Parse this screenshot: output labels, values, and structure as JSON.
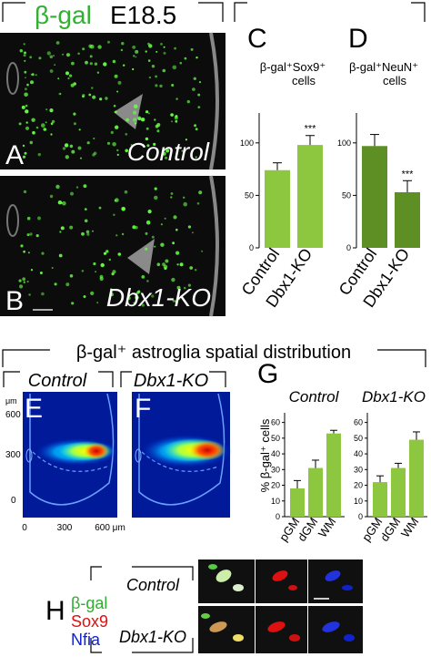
{
  "header_top": {
    "marker": "β-gal",
    "stage": "E18.5"
  },
  "panels": {
    "A": {
      "letter": "A",
      "label": "Control"
    },
    "B": {
      "letter": "B",
      "label": "Dbx1-KO"
    },
    "C": {
      "letter": "C"
    },
    "D": {
      "letter": "D"
    },
    "E": {
      "letter": "E",
      "label": "Control"
    },
    "F": {
      "letter": "F",
      "label": "Dbx1-KO"
    },
    "G": {
      "letter": "G"
    },
    "H": {
      "letter": "H"
    }
  },
  "section_title": "β-gal⁺ astroglia spatial distribution",
  "axis_ef": {
    "unit": "μm",
    "y_ticks": [
      "600",
      "300",
      "0"
    ],
    "x_ticks": [
      "0",
      "300",
      "600 μm"
    ]
  },
  "legend_h": [
    {
      "text": "β-gal",
      "color": "#33aa33"
    },
    {
      "text": "Sox9",
      "color": "#dd1111"
    },
    {
      "text": "Nfia",
      "color": "#1122cc"
    }
  ],
  "h_rows": [
    "Control",
    "Dbx1-KO"
  ],
  "colors": {
    "bar_c": "#8dc63f",
    "bar_d": "#5e8f25",
    "bar_g": "#8dc63f",
    "fluor": "#66ff44"
  },
  "chart_data": [
    {
      "id": "C",
      "type": "bar",
      "title": "β-gal⁺Sox9⁺ cells",
      "categories": [
        "Control",
        "Dbx1-KO"
      ],
      "values": [
        74,
        98
      ],
      "errors": [
        7,
        9
      ],
      "significance": [
        "",
        "***"
      ],
      "yticks": [
        0,
        50,
        100
      ],
      "ylim": [
        0,
        125
      ]
    },
    {
      "id": "D",
      "type": "bar",
      "title": "β-gal⁺NeuN⁺ cells",
      "categories": [
        "Control",
        "Dbx1-KO"
      ],
      "values": [
        97,
        53
      ],
      "errors": [
        11,
        11
      ],
      "significance": [
        "",
        "***"
      ],
      "yticks": [
        0,
        50,
        100
      ],
      "ylim": [
        0,
        125
      ]
    },
    {
      "id": "G-control",
      "type": "bar",
      "title": "Control",
      "ylabel": "% β-gal⁺ cells",
      "categories": [
        "pGM",
        "dGM",
        "WM"
      ],
      "values": [
        18,
        31,
        53
      ],
      "errors": [
        5,
        5,
        2
      ],
      "yticks": [
        0,
        10,
        20,
        30,
        40,
        50,
        60
      ],
      "ylim": [
        0,
        65
      ]
    },
    {
      "id": "G-dbx1ko",
      "type": "bar",
      "title": "Dbx1-KO",
      "categories": [
        "pGM",
        "dGM",
        "WM"
      ],
      "values": [
        22,
        31,
        49
      ],
      "errors": [
        4,
        3,
        5
      ],
      "yticks": [
        0,
        10,
        20,
        30,
        40,
        50,
        60
      ],
      "ylim": [
        0,
        65
      ]
    }
  ]
}
